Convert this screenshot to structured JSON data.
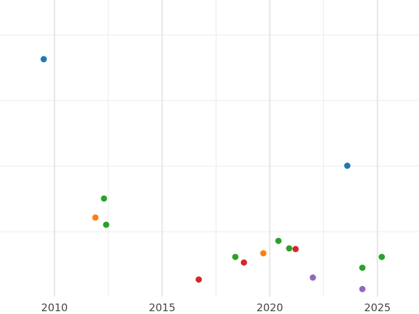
{
  "chart_data": {
    "type": "scatter",
    "title": "",
    "xlabel": "",
    "ylabel": "",
    "xlim": [
      2009.0,
      2026.5
    ],
    "ylim": [
      0,
      100
    ],
    "x_ticks": [
      2010,
      2015,
      2020,
      2025
    ],
    "x_tick_labels": [
      "2010",
      "2015",
      "2020",
      "2025"
    ],
    "y_gridlines": [
      20,
      40,
      60,
      80
    ],
    "grid": true,
    "colors": {
      "blue": "#1f77b4",
      "orange": "#ff7f0e",
      "green": "#2ca02c",
      "red": "#d62728",
      "purple": "#9467bd"
    },
    "series": [
      {
        "color": "#1f77b4",
        "points": [
          {
            "x": 2009.5,
            "y": 72.6
          },
          {
            "x": 2023.6,
            "y": 40.1
          }
        ]
      },
      {
        "color": "#ff7f0e",
        "points": [
          {
            "x": 2011.9,
            "y": 24.3
          },
          {
            "x": 2019.7,
            "y": 13.4
          }
        ]
      },
      {
        "color": "#2ca02c",
        "points": [
          {
            "x": 2012.3,
            "y": 30.1
          },
          {
            "x": 2012.4,
            "y": 22.1
          },
          {
            "x": 2018.4,
            "y": 12.3
          },
          {
            "x": 2020.4,
            "y": 17.2
          },
          {
            "x": 2020.9,
            "y": 14.9
          },
          {
            "x": 2024.3,
            "y": 9.0
          },
          {
            "x": 2025.2,
            "y": 12.3
          }
        ]
      },
      {
        "color": "#d62728",
        "points": [
          {
            "x": 2016.7,
            "y": 5.4
          },
          {
            "x": 2018.8,
            "y": 10.6
          },
          {
            "x": 2021.2,
            "y": 14.7
          }
        ]
      },
      {
        "color": "#9467bd",
        "points": [
          {
            "x": 2022.0,
            "y": 6.0
          },
          {
            "x": 2024.3,
            "y": 2.5
          }
        ]
      }
    ]
  }
}
